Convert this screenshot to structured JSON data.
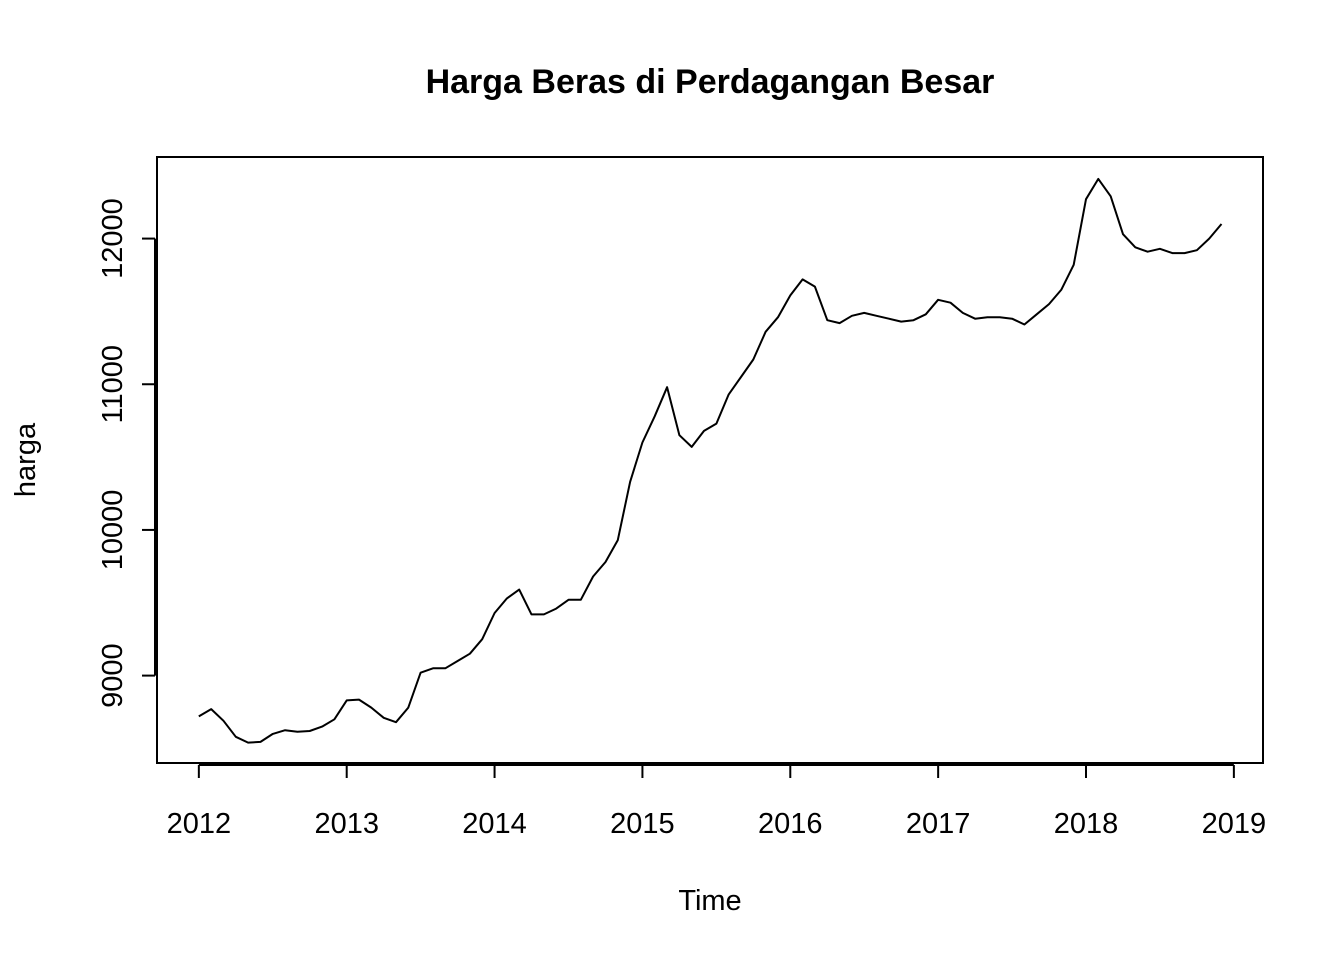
{
  "chart_data": {
    "type": "line",
    "title": "Harga Beras di Perdagangan Besar",
    "xlabel": "Time",
    "ylabel": "harga",
    "x_ticks": [
      "2012",
      "2013",
      "2014",
      "2015",
      "2016",
      "2017",
      "2018",
      "2019"
    ],
    "y_ticks": [
      "9000",
      "10000",
      "11000",
      "12000"
    ],
    "xlim": [
      2011.717,
      2019.197
    ],
    "ylim": [
      8400,
      12560
    ],
    "grid": false,
    "legend": "none",
    "line_color": "#000000",
    "series": [
      {
        "x_start": "2012-01",
        "frequency": "monthly",
        "values": [
          8720,
          8770,
          8690,
          8580,
          8540,
          8545,
          8600,
          8625,
          8615,
          8620,
          8650,
          8700,
          8830,
          8835,
          8780,
          8710,
          8680,
          8780,
          9020,
          9050,
          9050,
          9100,
          9150,
          9250,
          9430,
          9530,
          9590,
          9420,
          9420,
          9460,
          9520,
          9520,
          9680,
          9780,
          9930,
          10330,
          10600,
          10780,
          10980,
          10650,
          10570,
          10680,
          10730,
          10930,
          11050,
          11170,
          11360,
          11460,
          11610,
          11720,
          11670,
          11440,
          11420,
          11470,
          11490,
          11470,
          11450,
          11430,
          11440,
          11480,
          11580,
          11560,
          11490,
          11450,
          11460,
          11460,
          11450,
          11410,
          11480,
          11550,
          11650,
          11820,
          12270,
          12410,
          12290,
          12030,
          11940,
          11910,
          11930,
          11900,
          11900,
          11920,
          12000,
          12100
        ]
      }
    ]
  }
}
